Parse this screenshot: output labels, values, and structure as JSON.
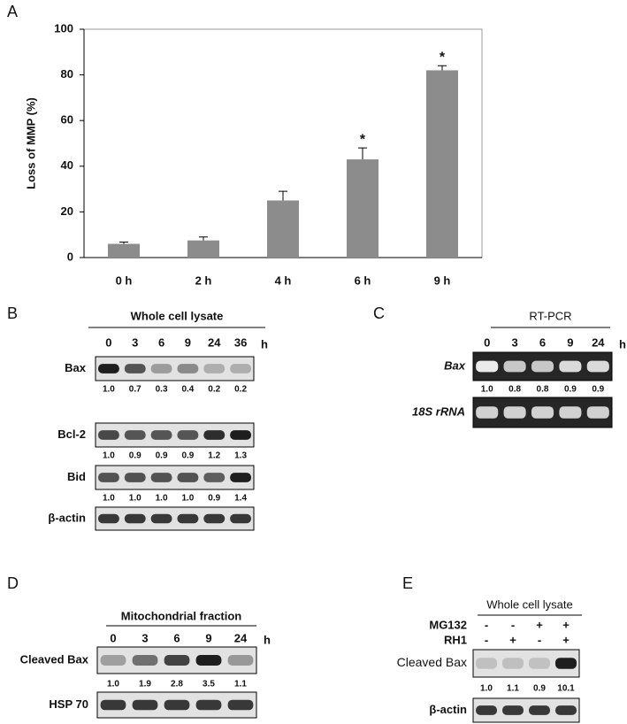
{
  "chart_data": {
    "type": "bar",
    "panel_label": "A",
    "ylabel": "Loss of MMP (%)",
    "categories": [
      "0 h",
      "2 h",
      "4 h",
      "6 h",
      "9 h"
    ],
    "values": [
      6,
      7.5,
      25,
      43,
      82
    ],
    "errors": [
      0.8,
      1.5,
      4,
      5,
      2
    ],
    "significance": [
      null,
      null,
      null,
      "*",
      "*"
    ],
    "color": "#8c8c8c",
    "ylim": [
      0,
      100
    ],
    "yticks": [
      0,
      20,
      40,
      60,
      80,
      100
    ],
    "grid": false
  },
  "panels": [
    {
      "label": "B",
      "header": "Whole cell lysate",
      "lanes": [
        "0",
        "3",
        "6",
        "9",
        "24",
        "36"
      ],
      "unit": "h",
      "rows": [
        {
          "name": "Bax",
          "quant": [
            "1.0",
            "0.7",
            "0.3",
            "0.4",
            "0.2",
            "0.2"
          ]
        },
        {
          "name": "Bcl-2",
          "quant": [
            "1.0",
            "0.9",
            "0.9",
            "0.9",
            "1.2",
            "1.3"
          ]
        },
        {
          "name": "Bid",
          "quant": [
            "1.0",
            "1.0",
            "1.0",
            "1.0",
            "0.9",
            "1.4"
          ]
        },
        {
          "name": "β-actin"
        }
      ]
    },
    {
      "label": "C",
      "header": "RT-PCR",
      "lanes": [
        "0",
        "3",
        "6",
        "9",
        "24"
      ],
      "unit": "h",
      "rows": [
        {
          "name": "Bax",
          "quant": [
            "1.0",
            "0.8",
            "0.8",
            "0.9",
            "0.9"
          ]
        },
        {
          "name": "18S rRNA"
        }
      ]
    },
    {
      "label": "D",
      "header": "Mitochondrial fraction",
      "lanes": [
        "0",
        "3",
        "6",
        "9",
        "24"
      ],
      "unit": "h",
      "rows": [
        {
          "name": "Cleaved Bax",
          "quant": [
            "1.0",
            "1.9",
            "2.8",
            "3.5",
            "1.1"
          ]
        },
        {
          "name": "HSP 70"
        }
      ]
    },
    {
      "label": "E",
      "header": "Whole cell lysate",
      "conditions": [
        {
          "name": "MG132",
          "signs": [
            "-",
            "-",
            "+",
            "+"
          ]
        },
        {
          "name": "RH1",
          "signs": [
            "-",
            "+",
            "-",
            "+"
          ]
        }
      ],
      "rows": [
        {
          "name": "Cleaved Bax",
          "quant": [
            "1.0",
            "1.1",
            "0.9",
            "10.1"
          ]
        },
        {
          "name": "β-actin"
        }
      ]
    }
  ]
}
